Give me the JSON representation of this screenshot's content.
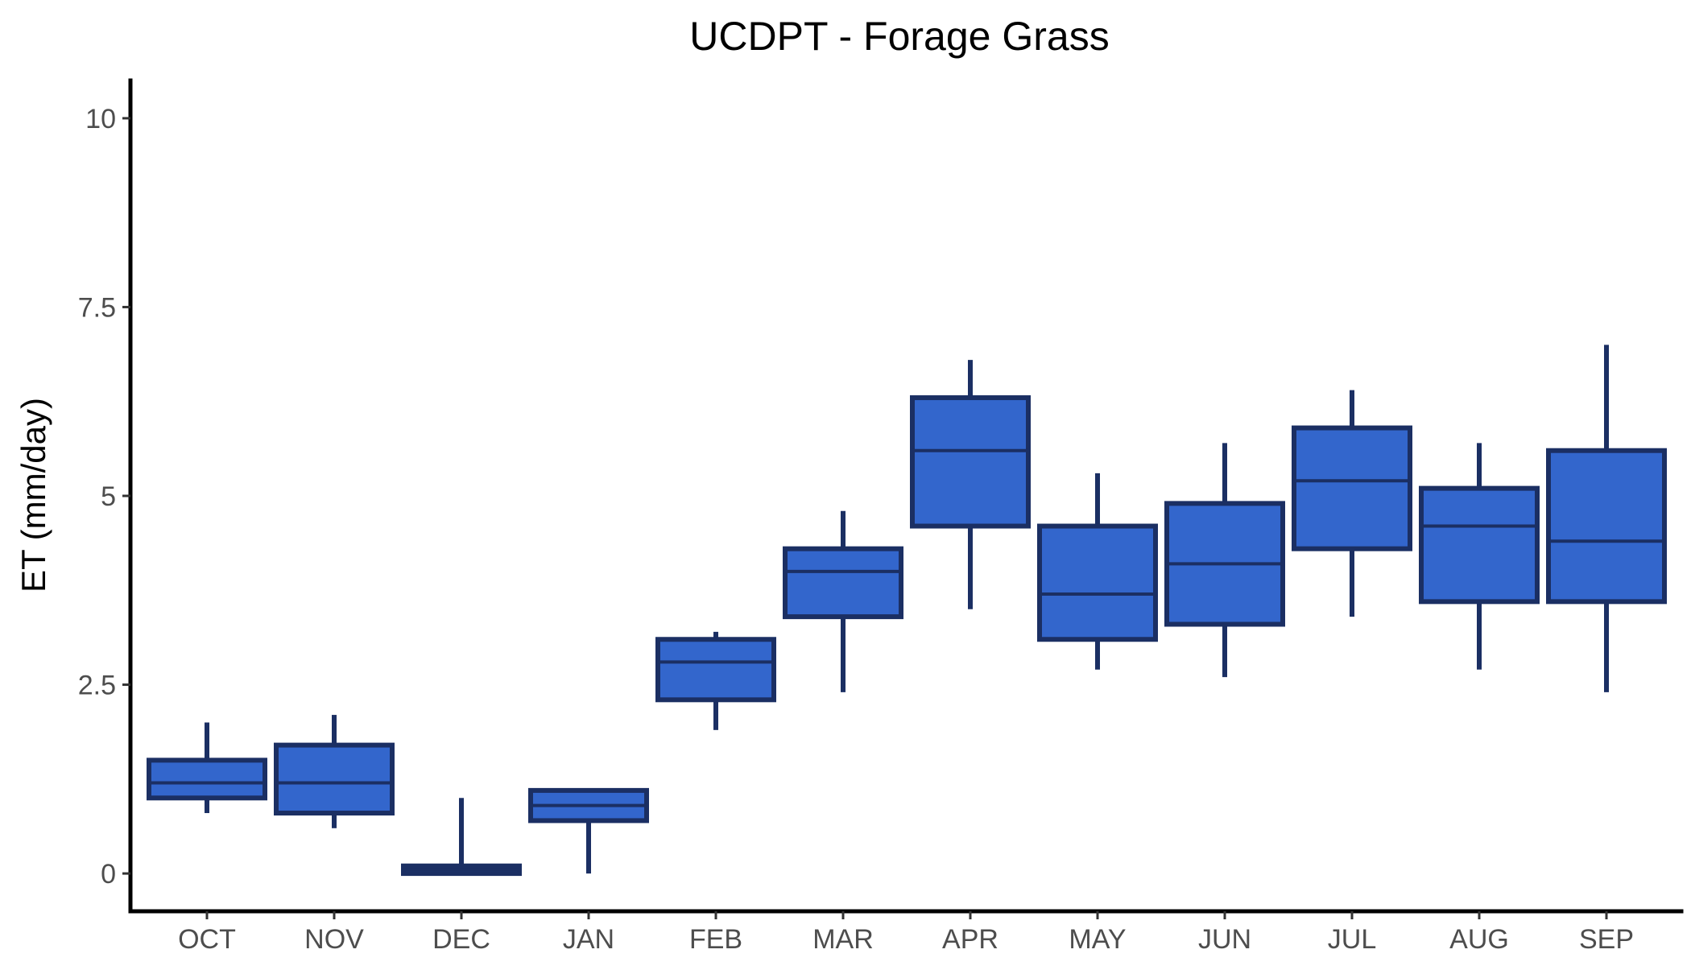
{
  "chart_data": {
    "type": "boxplot",
    "title": "UCDPT - Forage Grass",
    "xlabel": "",
    "ylabel": "ET (mm/day)",
    "ylim": [
      -0.5,
      10.5
    ],
    "yticks": [
      0,
      2.5,
      5,
      7.5,
      10
    ],
    "ytick_labels": [
      "0",
      "2.5",
      "5",
      "7.5",
      "10"
    ],
    "grid": false,
    "legend": "none",
    "categories": [
      "OCT",
      "NOV",
      "DEC",
      "JAN",
      "FEB",
      "MAR",
      "APR",
      "MAY",
      "JUN",
      "JUL",
      "AUG",
      "SEP"
    ],
    "boxes": [
      {
        "min": 0.8,
        "q1": 1.0,
        "median": 1.2,
        "q3": 1.5,
        "max": 2.0
      },
      {
        "min": 0.6,
        "q1": 0.8,
        "median": 1.2,
        "q3": 1.7,
        "max": 2.1
      },
      {
        "min": 0.0,
        "q1": 0.0,
        "median": 0.05,
        "q3": 0.1,
        "max": 1.0
      },
      {
        "min": 0.0,
        "q1": 0.7,
        "median": 0.9,
        "q3": 1.1,
        "max": 1.1
      },
      {
        "min": 1.9,
        "q1": 2.3,
        "median": 2.8,
        "q3": 3.1,
        "max": 3.2
      },
      {
        "min": 2.4,
        "q1": 3.4,
        "median": 4.0,
        "q3": 4.3,
        "max": 4.8
      },
      {
        "min": 3.5,
        "q1": 4.6,
        "median": 5.6,
        "q3": 6.3,
        "max": 6.8
      },
      {
        "min": 2.7,
        "q1": 3.1,
        "median": 3.7,
        "q3": 4.6,
        "max": 5.3
      },
      {
        "min": 2.6,
        "q1": 3.3,
        "median": 4.1,
        "q3": 4.9,
        "max": 5.7
      },
      {
        "min": 3.4,
        "q1": 4.3,
        "median": 5.2,
        "q3": 5.9,
        "max": 6.4
      },
      {
        "min": 2.7,
        "q1": 3.6,
        "median": 4.6,
        "q3": 5.1,
        "max": 5.7
      },
      {
        "min": 2.4,
        "q1": 3.6,
        "median": 4.4,
        "q3": 5.6,
        "max": 7.0
      }
    ],
    "colors": {
      "fill": "#3366cc",
      "outline": "#1b2f63",
      "axis": "#000000",
      "tick_text": "#4d4d4d"
    }
  }
}
